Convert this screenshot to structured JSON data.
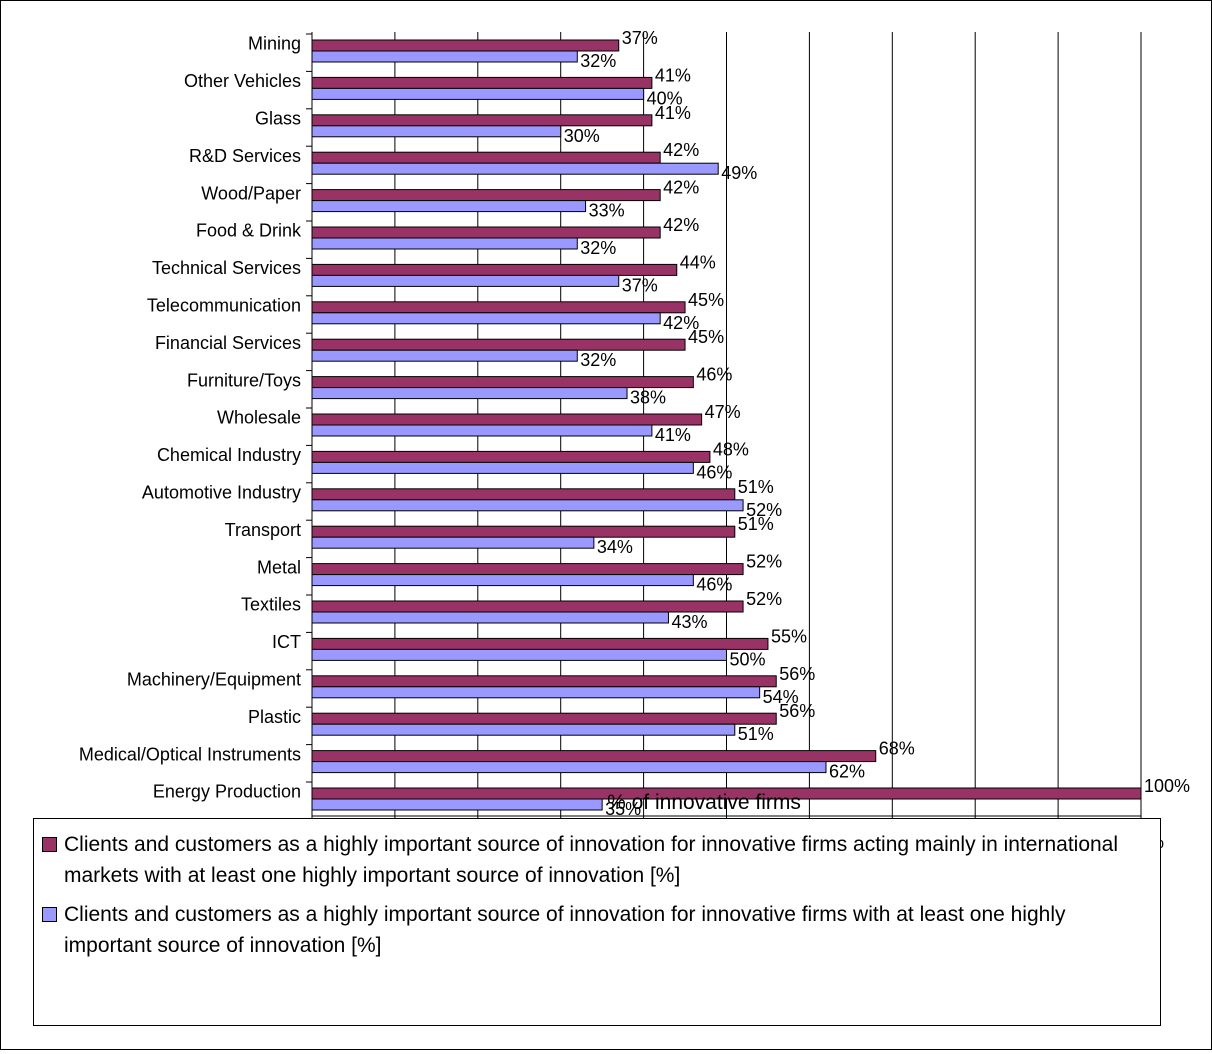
{
  "chart_data": {
    "type": "bar",
    "orientation": "horizontal",
    "categories": [
      "Mining",
      "Other Vehicles",
      "Glass",
      "R&D Services",
      "Wood/Paper",
      "Food & Drink",
      "Technical Services",
      "Telecommunication",
      "Financial Services",
      "Furniture/Toys",
      "Wholesale",
      "Chemical Industry",
      "Automotive Industry",
      "Transport",
      "Metal",
      "Textiles",
      "ICT",
      "Machinery/Equipment",
      "Plastic",
      "Medical/Optical Instruments",
      "Energy Production"
    ],
    "series": [
      {
        "name": "Clients and customers as a highly important source of innovation for innovative firms acting mainly in international markets with at least one highly important source of innovation [%]",
        "color": "#993366",
        "values": [
          37,
          41,
          41,
          42,
          42,
          42,
          44,
          45,
          45,
          46,
          47,
          48,
          51,
          51,
          52,
          52,
          55,
          56,
          56,
          68,
          100
        ],
        "labels": [
          "37%",
          "41%",
          "41%",
          "42%",
          "42%",
          "42%",
          "44%",
          "45%",
          "45%",
          "46%",
          "47%",
          "48%",
          "51%",
          "51%",
          "52%",
          "52%",
          "55%",
          "56%",
          "56%",
          "68%",
          "100%"
        ]
      },
      {
        "name": "Clients and customers as a highly important source of innovation for innovative firms with at least one highly important source of innovation [%]",
        "color": "#9999ff",
        "values": [
          32,
          40,
          30,
          49,
          33,
          32,
          37,
          42,
          32,
          38,
          41,
          46,
          52,
          34,
          46,
          43,
          50,
          54,
          51,
          62,
          35
        ],
        "labels": [
          "32%",
          "40%",
          "30%",
          "49%",
          "33%",
          "32%",
          "37%",
          "42%",
          "32%",
          "38%",
          "41%",
          "46%",
          "52%",
          "34%",
          "46%",
          "43%",
          "50%",
          "54%",
          "51%",
          "62%",
          "35%"
        ]
      }
    ],
    "x_ticks": [
      "0%",
      "10%",
      "20%",
      "30%",
      "40%",
      "50%",
      "60%",
      "70%",
      "80%",
      "90%",
      "100%"
    ],
    "xlim": [
      0,
      100
    ],
    "xlabel": "% of innovative firms",
    "ylabel": "",
    "title": "",
    "grid": "vertical",
    "legend_position": "bottom"
  }
}
